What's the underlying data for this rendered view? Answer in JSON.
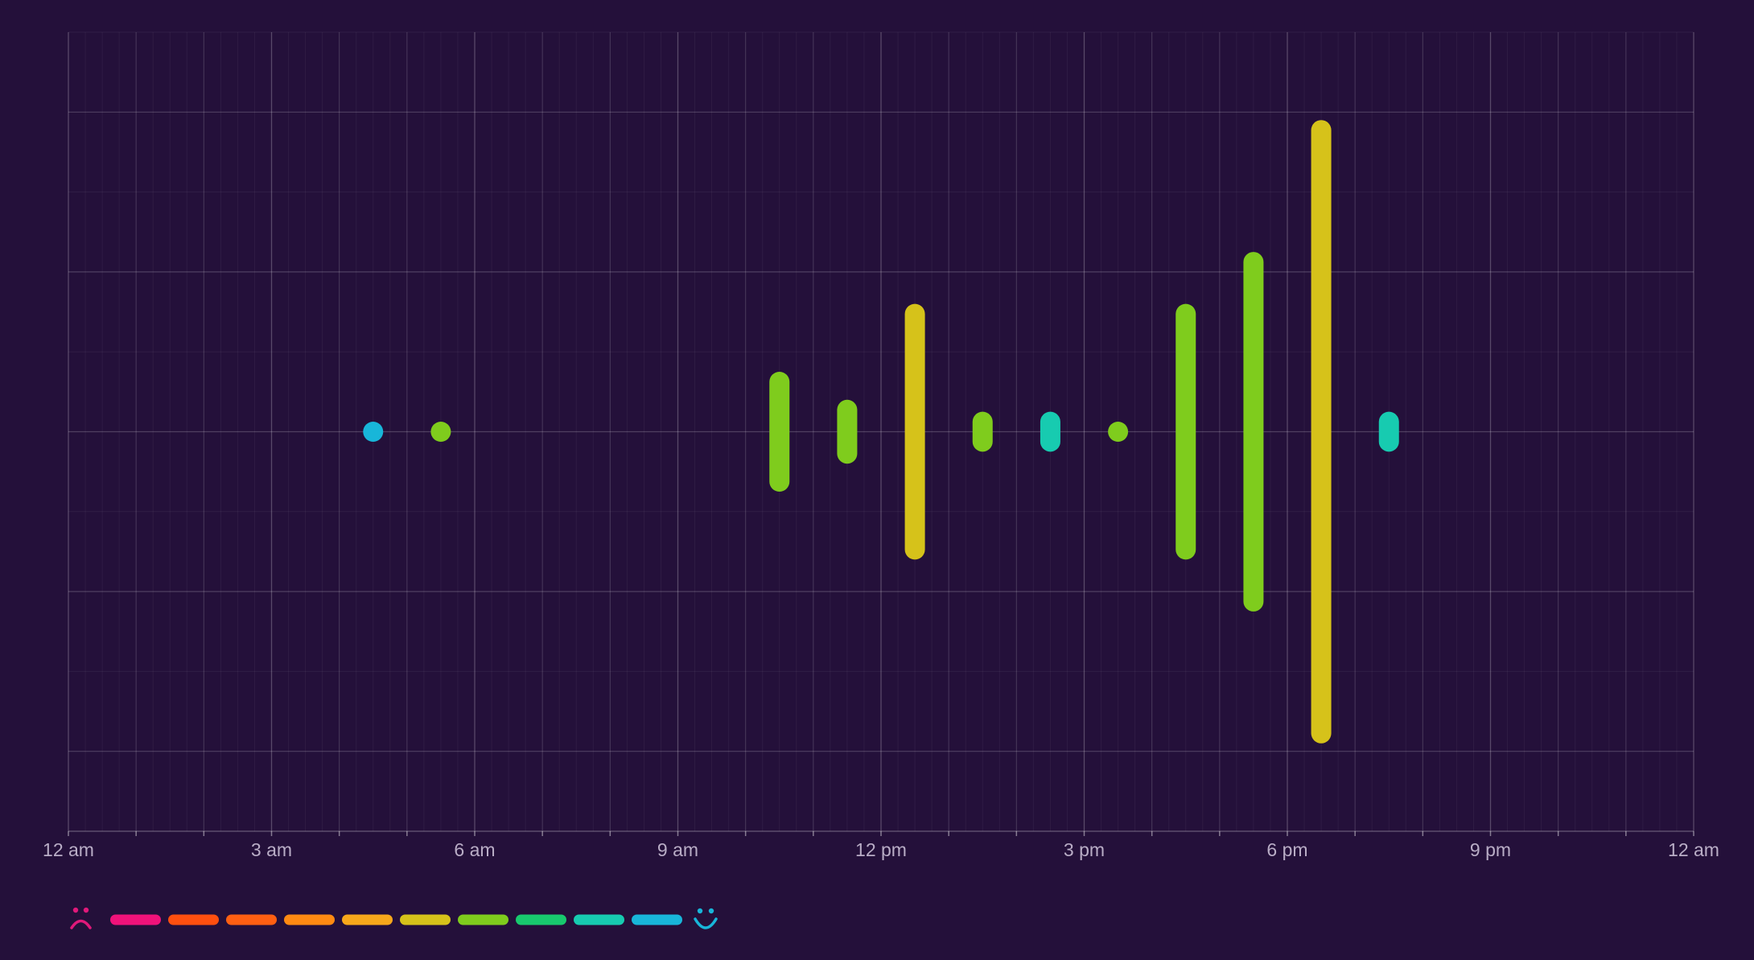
{
  "chart_data": {
    "type": "bar",
    "title": "",
    "xlabel": "",
    "ylabel": "",
    "x_unit": "hour of day",
    "xlim": [
      0,
      24
    ],
    "x_ticks": [
      {
        "value": 0,
        "label": "12 am"
      },
      {
        "value": 3,
        "label": "3 am"
      },
      {
        "value": 6,
        "label": "6 am"
      },
      {
        "value": 9,
        "label": "9 am"
      },
      {
        "value": 12,
        "label": "12 pm"
      },
      {
        "value": 15,
        "label": "3 pm"
      },
      {
        "value": 18,
        "label": "6 pm"
      },
      {
        "value": 21,
        "label": "9 pm"
      },
      {
        "value": 24,
        "label": "12 am"
      }
    ],
    "ylim": [
      -5,
      5
    ],
    "y_axis_labels_shown": false,
    "grid": true,
    "bar_style": "rounded vertical bars centered on the middle line",
    "bars": [
      {
        "hour": 4.5,
        "amount": 0.1,
        "mood": 9
      },
      {
        "hour": 5.5,
        "amount": 0.1,
        "mood": 6
      },
      {
        "hour": 10.5,
        "amount": 0.75,
        "mood": 6
      },
      {
        "hour": 11.5,
        "amount": 0.4,
        "mood": 6
      },
      {
        "hour": 12.5,
        "amount": 1.6,
        "mood": 5
      },
      {
        "hour": 13.5,
        "amount": 0.25,
        "mood": 6
      },
      {
        "hour": 14.5,
        "amount": 0.25,
        "mood": 8
      },
      {
        "hour": 15.5,
        "amount": 0.03,
        "mood": 6
      },
      {
        "hour": 16.5,
        "amount": 1.6,
        "mood": 6
      },
      {
        "hour": 17.5,
        "amount": 2.25,
        "mood": 6
      },
      {
        "hour": 18.5,
        "amount": 3.9,
        "mood": 5
      },
      {
        "hour": 19.5,
        "amount": 0.25,
        "mood": 8
      }
    ],
    "legend": {
      "placement": "bottom-left",
      "low_icon": "sad-face-icon",
      "high_icon": "happy-face-icon",
      "scale_colors": [
        "#f0127a",
        "#ff4f0f",
        "#ff5f12",
        "#ff8a12",
        "#f7a81b",
        "#d6c21a",
        "#7fcc1d",
        "#18c96e",
        "#17cbb0",
        "#18b6d9"
      ]
    }
  },
  "colors": {
    "background": "#24103a",
    "sad_icon": "#e0197a",
    "happy_icon": "#18b6d9"
  }
}
